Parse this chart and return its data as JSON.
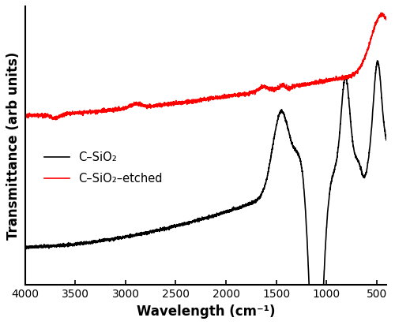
{
  "xlabel": "Wavelength (cm⁻¹)",
  "ylabel": "Transmittance (arb units)",
  "xlim": [
    4000,
    400
  ],
  "legend": [
    {
      "label": "C–SiO₂",
      "color": "black"
    },
    {
      "label": "C–SiO₂–etched",
      "color": "red"
    }
  ],
  "xticks": [
    4000,
    3500,
    3000,
    2500,
    2000,
    1500,
    1000,
    500
  ]
}
